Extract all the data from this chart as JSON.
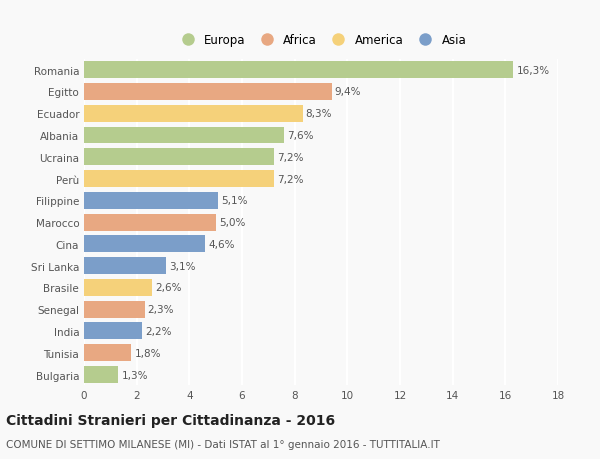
{
  "categories": [
    "Romania",
    "Egitto",
    "Ecuador",
    "Albania",
    "Ucraina",
    "Perù",
    "Filippine",
    "Marocco",
    "Cina",
    "Sri Lanka",
    "Brasile",
    "Senegal",
    "India",
    "Tunisia",
    "Bulgaria"
  ],
  "values": [
    16.3,
    9.4,
    8.3,
    7.6,
    7.2,
    7.2,
    5.1,
    5.0,
    4.6,
    3.1,
    2.6,
    2.3,
    2.2,
    1.8,
    1.3
  ],
  "continents": [
    "Europa",
    "Africa",
    "America",
    "Europa",
    "Europa",
    "America",
    "Asia",
    "Africa",
    "Asia",
    "Asia",
    "America",
    "Africa",
    "Asia",
    "Africa",
    "Europa"
  ],
  "colors": {
    "Europa": "#b5cc8e",
    "Africa": "#e8a882",
    "America": "#f5d17a",
    "Asia": "#7b9ec9"
  },
  "xlim": [
    0,
    18
  ],
  "xticks": [
    0,
    2,
    4,
    6,
    8,
    10,
    12,
    14,
    16,
    18
  ],
  "title": "Cittadini Stranieri per Cittadinanza - 2016",
  "subtitle": "COMUNE DI SETTIMO MILANESE (MI) - Dati ISTAT al 1° gennaio 2016 - TUTTITALIA.IT",
  "background_color": "#f9f9f9",
  "grid_color": "#ffffff",
  "bar_height": 0.78,
  "label_fontsize": 7.5,
  "tick_fontsize": 7.5,
  "title_fontsize": 10,
  "subtitle_fontsize": 7.5,
  "legend_order": [
    "Europa",
    "Africa",
    "America",
    "Asia"
  ]
}
